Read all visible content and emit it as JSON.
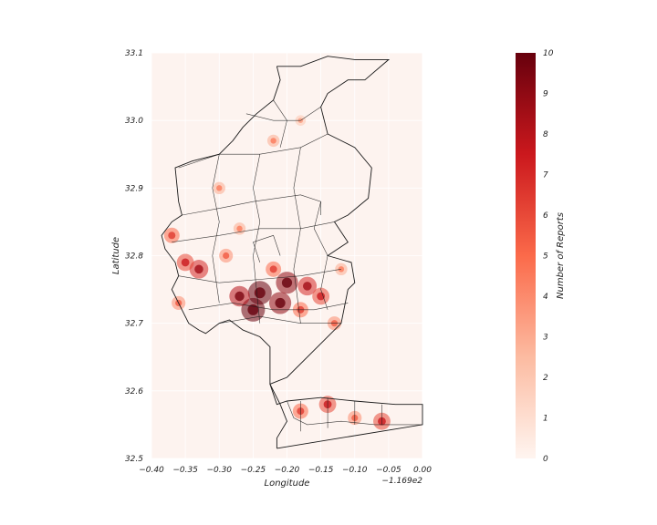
{
  "chart_data": {
    "type": "heatmap",
    "title": "",
    "xlabel": "Longitude",
    "ylabel": "Latitude",
    "x_offset_label": "−1.169e2",
    "xlim": [
      -0.4,
      0.0
    ],
    "ylim": [
      32.5,
      33.1
    ],
    "xticks": [
      "−0.40",
      "−0.35",
      "−0.30",
      "−0.25",
      "−0.20",
      "−0.15",
      "−0.10",
      "−0.05",
      "0.00"
    ],
    "xtick_values": [
      -0.4,
      -0.35,
      -0.3,
      -0.25,
      -0.2,
      -0.15,
      -0.1,
      -0.05,
      0.0
    ],
    "yticks": [
      "32.5",
      "32.6",
      "32.7",
      "32.8",
      "32.9",
      "33.0",
      "33.1"
    ],
    "ytick_values": [
      32.5,
      32.6,
      32.7,
      32.8,
      32.9,
      33.0,
      33.1
    ],
    "grid": true,
    "background_color": "#fdf3ef",
    "boundary_color": "#1a1a1a",
    "colorbar": {
      "label": "Number of Reports",
      "min": 0,
      "max": 10,
      "ticks": [
        "0",
        "1",
        "2",
        "3",
        "4",
        "5",
        "6",
        "7",
        "8",
        "9",
        "10"
      ],
      "tick_values": [
        0,
        1,
        2,
        3,
        4,
        5,
        6,
        7,
        8,
        9,
        10
      ],
      "colormap": "Reds",
      "colors": [
        "#fff5f0",
        "#fcbba1",
        "#fb6a4a",
        "#cb181d",
        "#67000d"
      ]
    },
    "hotspots": [
      {
        "x": -0.24,
        "y": 32.745,
        "intensity": 10
      },
      {
        "x": -0.25,
        "y": 32.72,
        "intensity": 10
      },
      {
        "x": -0.21,
        "y": 32.73,
        "intensity": 9
      },
      {
        "x": -0.2,
        "y": 32.76,
        "intensity": 9
      },
      {
        "x": -0.27,
        "y": 32.74,
        "intensity": 8
      },
      {
        "x": -0.17,
        "y": 32.755,
        "intensity": 7
      },
      {
        "x": -0.15,
        "y": 32.74,
        "intensity": 6
      },
      {
        "x": -0.33,
        "y": 32.78,
        "intensity": 7
      },
      {
        "x": -0.35,
        "y": 32.79,
        "intensity": 6
      },
      {
        "x": -0.37,
        "y": 32.83,
        "intensity": 5
      },
      {
        "x": -0.29,
        "y": 32.8,
        "intensity": 4
      },
      {
        "x": -0.22,
        "y": 32.78,
        "intensity": 5
      },
      {
        "x": -0.18,
        "y": 32.72,
        "intensity": 5
      },
      {
        "x": -0.13,
        "y": 32.7,
        "intensity": 4
      },
      {
        "x": -0.14,
        "y": 32.58,
        "intensity": 6
      },
      {
        "x": -0.18,
        "y": 32.57,
        "intensity": 5
      },
      {
        "x": -0.1,
        "y": 32.56,
        "intensity": 4
      },
      {
        "x": -0.06,
        "y": 32.555,
        "intensity": 6
      },
      {
        "x": -0.27,
        "y": 32.84,
        "intensity": 3
      },
      {
        "x": -0.3,
        "y": 32.9,
        "intensity": 3
      },
      {
        "x": -0.22,
        "y": 32.97,
        "intensity": 3
      },
      {
        "x": -0.18,
        "y": 33.0,
        "intensity": 2
      },
      {
        "x": -0.36,
        "y": 32.73,
        "intensity": 4
      },
      {
        "x": -0.12,
        "y": 32.78,
        "intensity": 3
      }
    ]
  }
}
